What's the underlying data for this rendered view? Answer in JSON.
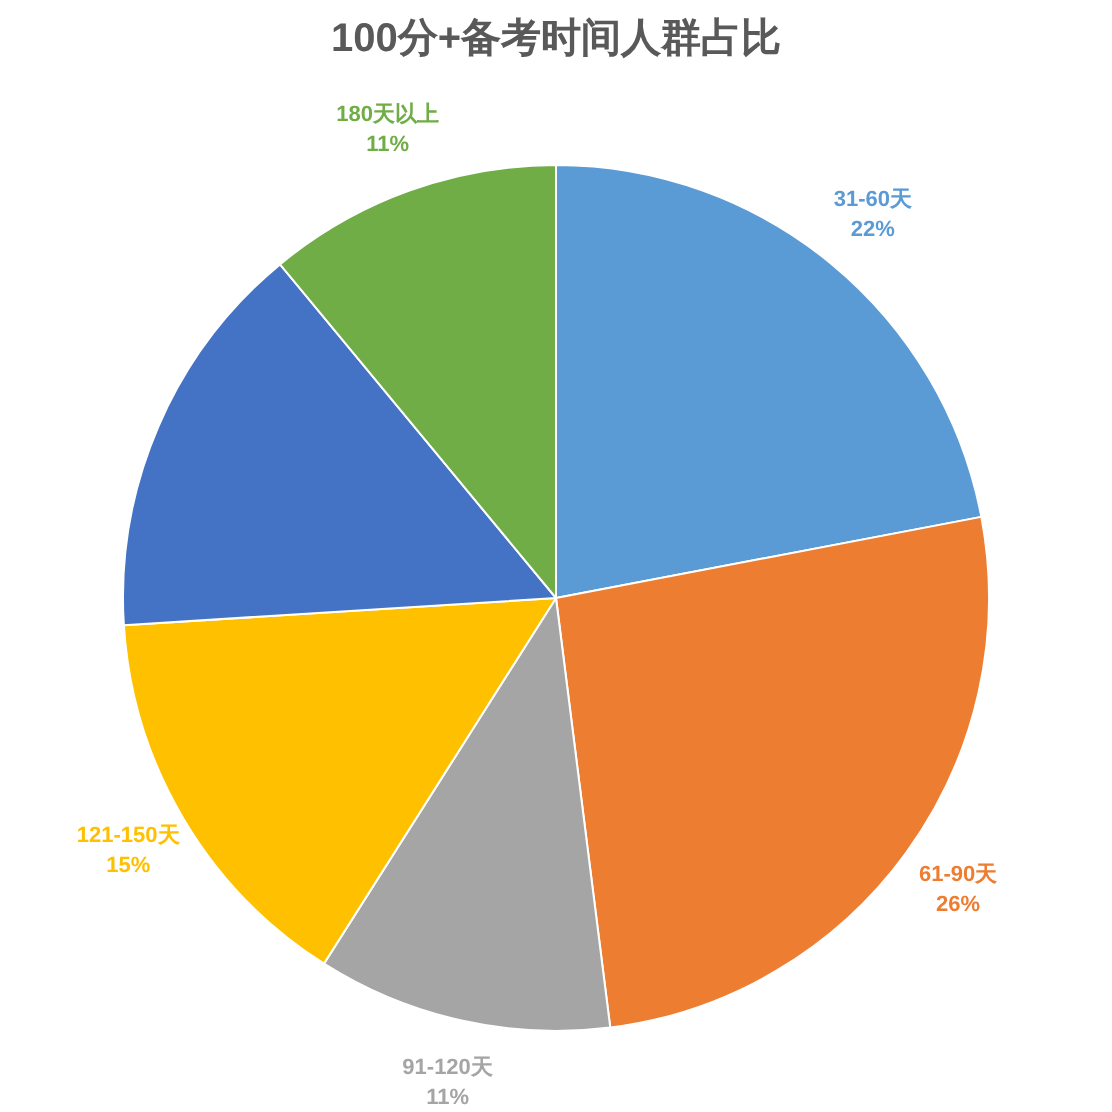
{
  "chart_data": {
    "type": "pie",
    "title": "100分+备考时间人群占比",
    "categories": [
      "31-60天",
      "61-90天",
      "91-120天",
      "121-150天",
      null,
      "180天以上"
    ],
    "values": [
      22,
      26,
      11,
      15,
      15,
      11
    ],
    "colors": [
      "#5b9bd5",
      "#ed7d31",
      "#a5a5a5",
      "#ffc000",
      "#4472c4",
      "#70ad47"
    ],
    "value_labels": [
      "22%",
      "26%",
      "11%",
      "15%",
      null,
      "11%"
    ],
    "legend": false
  }
}
